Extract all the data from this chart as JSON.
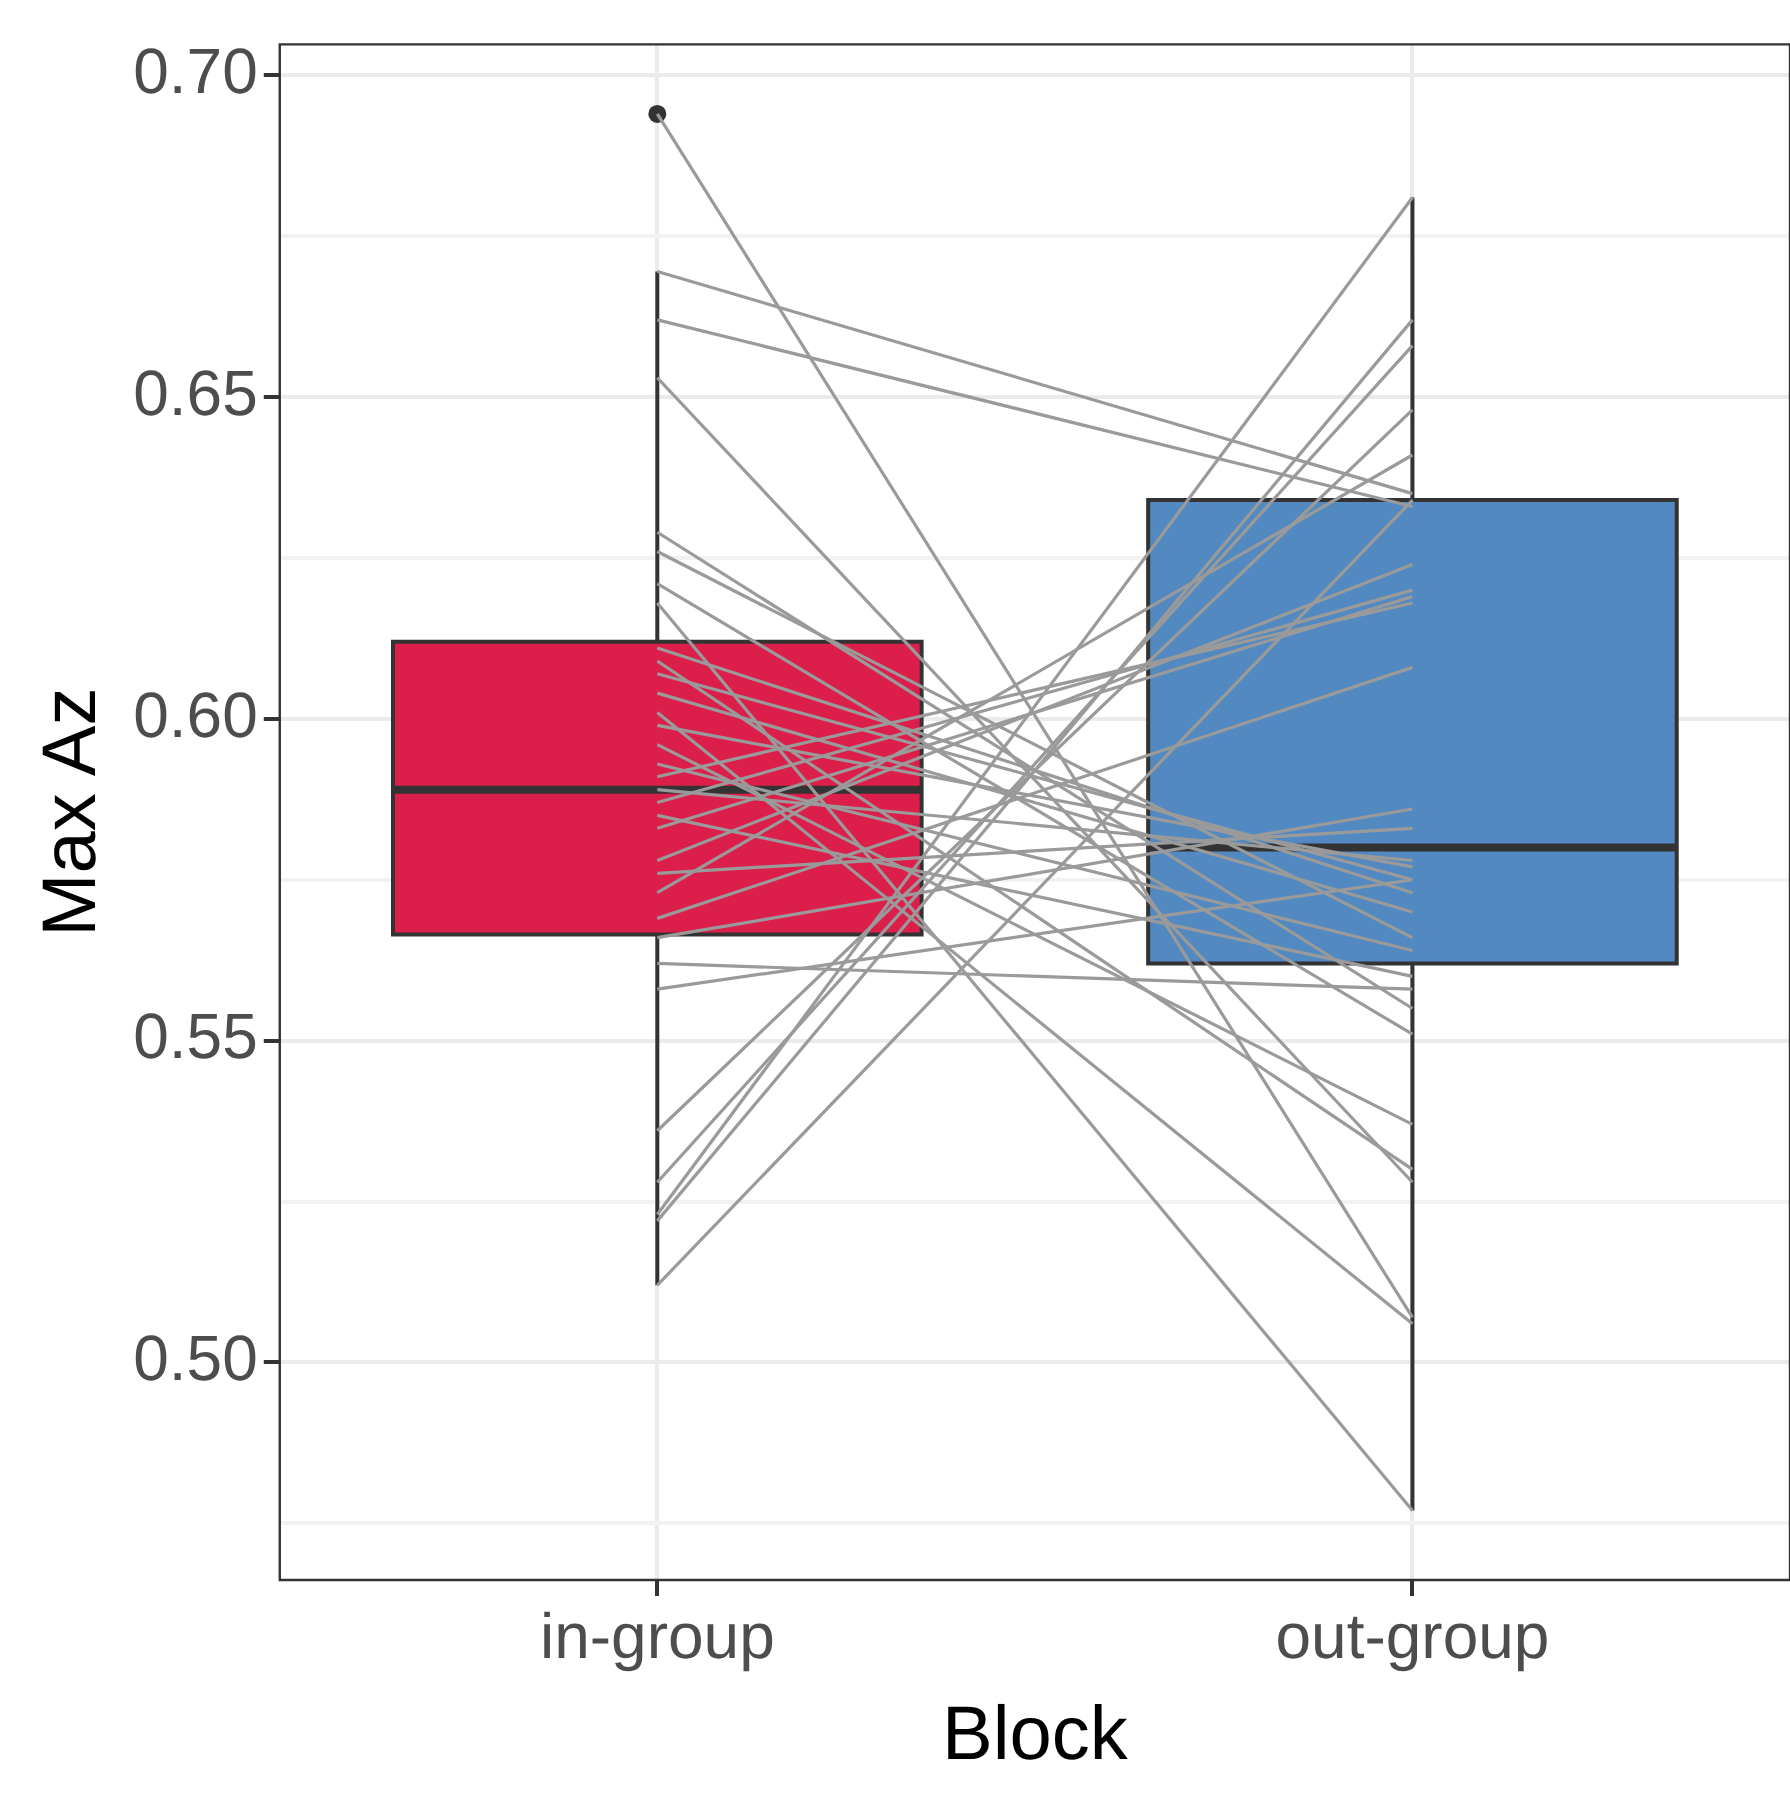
{
  "chart_data": {
    "type": "box",
    "xlabel": "Block",
    "ylabel": "Max Az",
    "categories": [
      "in-group",
      "out-group"
    ],
    "colors": [
      "#dc1e4a",
      "#5189c0"
    ],
    "boxes": [
      {
        "low": 0.512,
        "q1": 0.5665,
        "median": 0.589,
        "q3": 0.612,
        "high": 0.6695,
        "outliers": [
          0.694
        ]
      },
      {
        "low": 0.477,
        "q1": 0.562,
        "median": 0.58,
        "q3": 0.634,
        "high": 0.681
      }
    ],
    "series": [
      {
        "type": "line",
        "color": "#9a9a9a",
        "values": [
          0.694,
          0.507
        ]
      },
      {
        "type": "line",
        "color": "#9a9a9a",
        "values": [
          0.6695,
          0.635
        ]
      },
      {
        "type": "line",
        "color": "#9a9a9a",
        "values": [
          0.662,
          0.633
        ]
      },
      {
        "type": "line",
        "color": "#9a9a9a",
        "values": [
          0.653,
          0.528
        ]
      },
      {
        "type": "line",
        "color": "#9a9a9a",
        "values": [
          0.629,
          0.555
        ]
      },
      {
        "type": "line",
        "color": "#9a9a9a",
        "values": [
          0.626,
          0.566
        ]
      },
      {
        "type": "line",
        "color": "#9a9a9a",
        "values": [
          0.621,
          0.551
        ]
      },
      {
        "type": "line",
        "color": "#9a9a9a",
        "values": [
          0.618,
          0.477
        ]
      },
      {
        "type": "line",
        "color": "#9a9a9a",
        "values": [
          0.611,
          0.573
        ]
      },
      {
        "type": "line",
        "color": "#9a9a9a",
        "values": [
          0.609,
          0.53
        ]
      },
      {
        "type": "line",
        "color": "#9a9a9a",
        "values": [
          0.607,
          0.575
        ]
      },
      {
        "type": "line",
        "color": "#9a9a9a",
        "values": [
          0.604,
          0.57
        ]
      },
      {
        "type": "line",
        "color": "#9a9a9a",
        "values": [
          0.601,
          0.506
        ]
      },
      {
        "type": "line",
        "color": "#9a9a9a",
        "values": [
          0.599,
          0.577
        ]
      },
      {
        "type": "line",
        "color": "#9a9a9a",
        "values": [
          0.596,
          0.537
        ]
      },
      {
        "type": "line",
        "color": "#9a9a9a",
        "values": [
          0.593,
          0.564
        ]
      },
      {
        "type": "line",
        "color": "#9a9a9a",
        "values": [
          0.591,
          0.618
        ]
      },
      {
        "type": "line",
        "color": "#9a9a9a",
        "values": [
          0.589,
          0.578
        ]
      },
      {
        "type": "line",
        "color": "#9a9a9a",
        "values": [
          0.587,
          0.62
        ]
      },
      {
        "type": "line",
        "color": "#9a9a9a",
        "values": [
          0.585,
          0.56
        ]
      },
      {
        "type": "line",
        "color": "#9a9a9a",
        "values": [
          0.583,
          0.619
        ]
      },
      {
        "type": "line",
        "color": "#9a9a9a",
        "values": [
          0.578,
          0.624
        ]
      },
      {
        "type": "line",
        "color": "#9a9a9a",
        "values": [
          0.576,
          0.583
        ]
      },
      {
        "type": "line",
        "color": "#9a9a9a",
        "values": [
          0.573,
          0.641
        ]
      },
      {
        "type": "line",
        "color": "#9a9a9a",
        "values": [
          0.569,
          0.608
        ]
      },
      {
        "type": "line",
        "color": "#9a9a9a",
        "values": [
          0.566,
          0.586
        ]
      },
      {
        "type": "line",
        "color": "#9a9a9a",
        "values": [
          0.562,
          0.558
        ]
      },
      {
        "type": "line",
        "color": "#9a9a9a",
        "values": [
          0.558,
          0.575
        ]
      },
      {
        "type": "line",
        "color": "#9a9a9a",
        "values": [
          0.536,
          0.648
        ]
      },
      {
        "type": "line",
        "color": "#9a9a9a",
        "values": [
          0.528,
          0.658
        ]
      },
      {
        "type": "line",
        "color": "#9a9a9a",
        "values": [
          0.523,
          0.681
        ]
      },
      {
        "type": "line",
        "color": "#9a9a9a",
        "values": [
          0.522,
          0.662
        ]
      },
      {
        "type": "line",
        "color": "#9a9a9a",
        "values": [
          0.512,
          0.634
        ]
      }
    ],
    "ylim": [
      0.4662,
      0.7048
    ],
    "yticks": [
      {
        "value": 0.475,
        "label": null
      },
      {
        "value": 0.5,
        "label": "0.50"
      },
      {
        "value": 0.525,
        "label": null
      },
      {
        "value": 0.55,
        "label": "0.55"
      },
      {
        "value": 0.575,
        "label": null
      },
      {
        "value": 0.6,
        "label": "0.60"
      },
      {
        "value": 0.625,
        "label": null
      },
      {
        "value": 0.65,
        "label": "0.65"
      },
      {
        "value": 0.675,
        "label": null
      },
      {
        "value": 0.7,
        "label": "0.70"
      }
    ],
    "grid": true,
    "legend": false
  }
}
